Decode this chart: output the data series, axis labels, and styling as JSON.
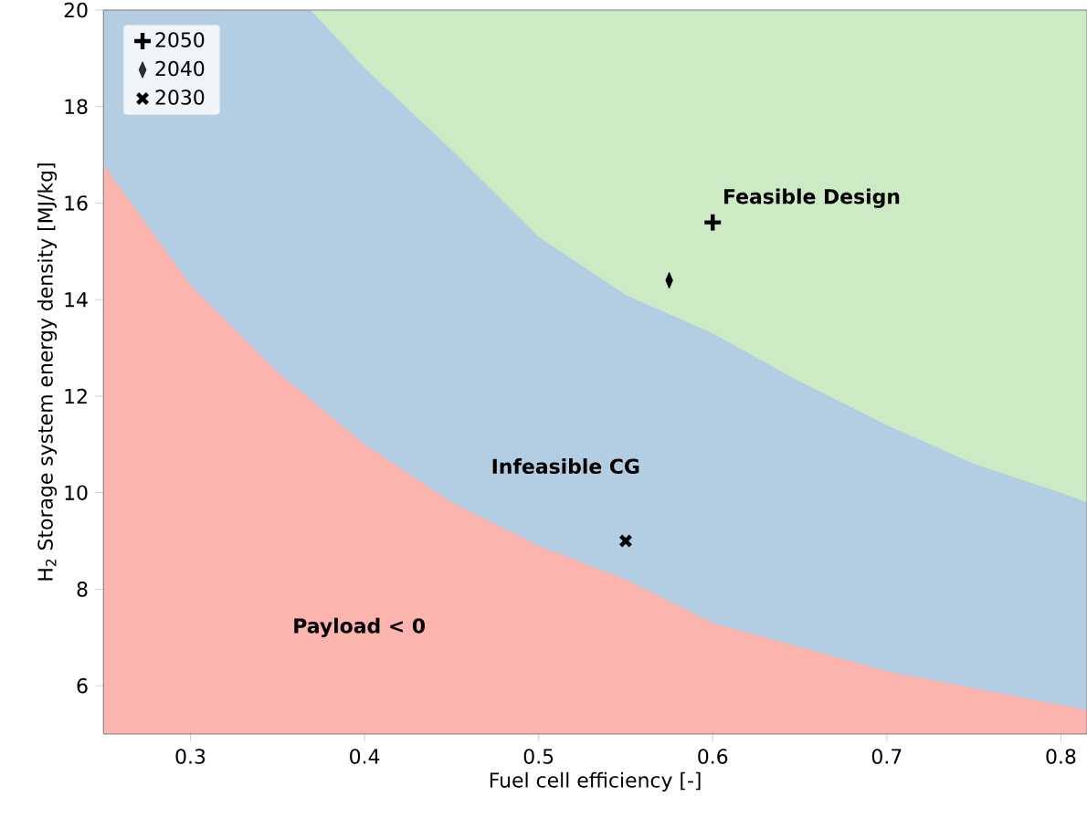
{
  "chart_data": {
    "type": "area",
    "xlabel": "Fuel cell efficiency [-]",
    "ylabel": "H$_{2}$ Storage system energy density [MJ/kg]",
    "xlim": [
      0.25,
      0.815
    ],
    "ylim": [
      5,
      20
    ],
    "xticks": [
      0.3,
      0.4,
      0.5,
      0.6,
      0.7,
      0.8
    ],
    "yticks": [
      6,
      8,
      10,
      12,
      14,
      16,
      18,
      20
    ],
    "grid": false,
    "legend": "top left",
    "bands": [
      {
        "axis": "y",
        "from": 5,
        "to": 20,
        "color": "#ccebc5"
      }
    ],
    "series": [
      {
        "color": "#fbb4ae",
        "x": [
          0.25,
          0.3,
          0.35,
          0.4,
          0.45,
          0.5,
          0.55,
          0.6,
          0.65,
          0.7,
          0.75,
          0.8,
          0.815
        ],
        "values": [
          16.8,
          14.3,
          12.5,
          11.0,
          9.8,
          8.9,
          8.2,
          7.3,
          6.8,
          6.3,
          5.95,
          5.6,
          5.5
        ]
      },
      {
        "color": "#b3cde3",
        "x": [
          0.25,
          0.369,
          0.4,
          0.45,
          0.5,
          0.55,
          0.6,
          0.65,
          0.7,
          0.75,
          0.8,
          0.815
        ],
        "values": [
          20,
          20,
          18.8,
          17.1,
          15.3,
          14.1,
          13.3,
          12.3,
          11.4,
          10.6,
          10.0,
          9.8
        ]
      },
      {
        "type": "scatter",
        "name": "2050",
        "color": "#000000",
        "marker": "plus",
        "x": [
          0.6
        ],
        "values": [
          15.6
        ]
      },
      {
        "type": "scatter",
        "name": "2040",
        "color": "#000000",
        "marker": "diamond",
        "x": [
          0.575
        ],
        "values": [
          14.4
        ]
      },
      {
        "type": "scatter",
        "name": "2030",
        "color": "#000000",
        "marker": "cross",
        "x": [
          0.55
        ],
        "values": [
          9.0
        ]
      }
    ],
    "annotations": [
      "Feasible Design",
      "Infeasible CG",
      "Payload < 0"
    ]
  }
}
